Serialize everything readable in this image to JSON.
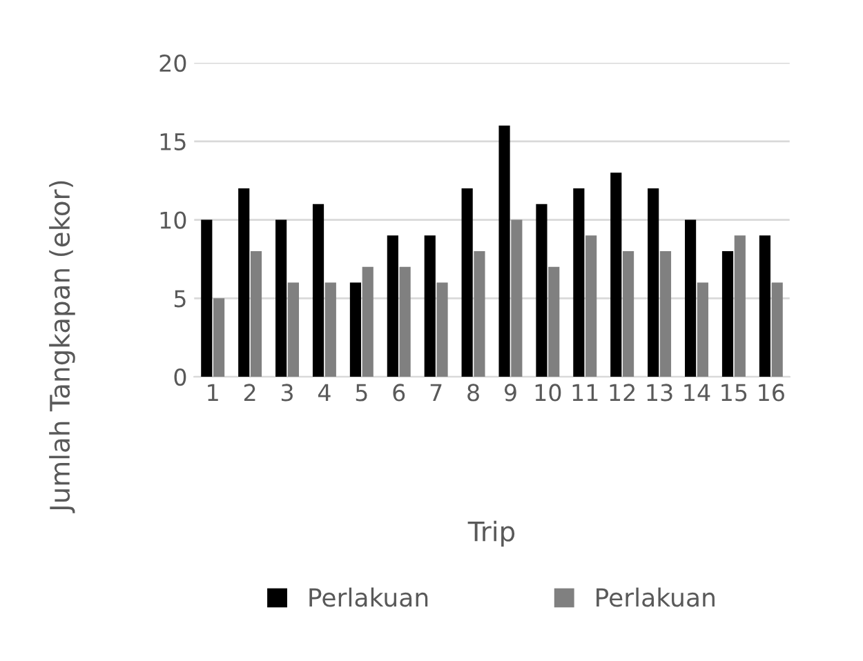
{
  "chart_data": {
    "type": "bar",
    "xlabel": "Trip",
    "ylabel": "Jumlah Tangkapan (ekor)",
    "categories": [
      "1",
      "2",
      "3",
      "4",
      "5",
      "6",
      "7",
      "8",
      "9",
      "10",
      "11",
      "12",
      "13",
      "14",
      "15",
      "16"
    ],
    "series": [
      {
        "name": "Perlakuan",
        "color": "#000000",
        "values": [
          10,
          12,
          10,
          11,
          6,
          9,
          9,
          12,
          16,
          11,
          12,
          13,
          12,
          10,
          8,
          9
        ]
      },
      {
        "name": "Perlakuan",
        "color": "#808080",
        "values": [
          5,
          8,
          6,
          6,
          7,
          7,
          6,
          8,
          10,
          7,
          9,
          8,
          8,
          6,
          9,
          6
        ]
      }
    ],
    "ylim": [
      0,
      20
    ],
    "yticks": [
      0,
      5,
      10,
      15,
      20
    ],
    "grid": "y",
    "legend": "bottom"
  }
}
